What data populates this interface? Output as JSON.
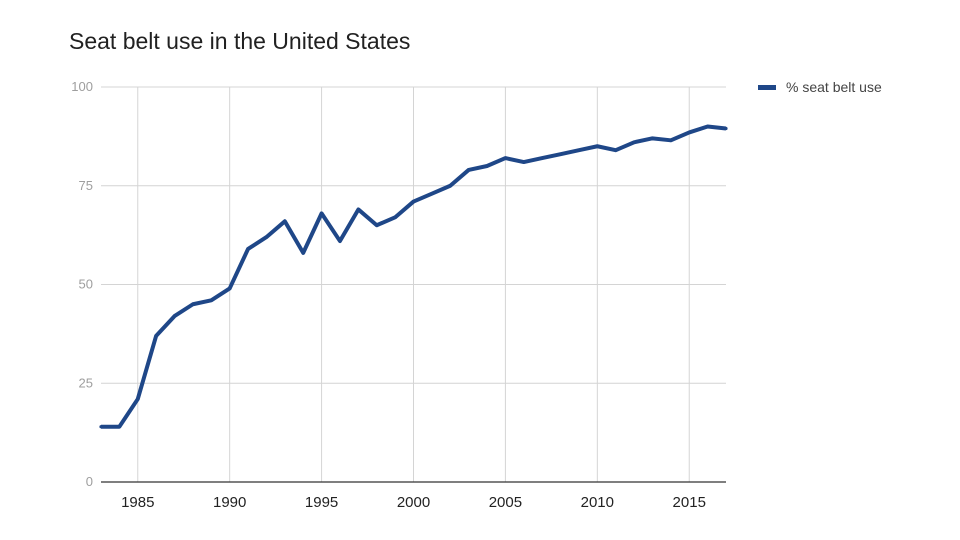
{
  "chart_data": {
    "type": "line",
    "title": "Seat belt use in the United States",
    "xlabel": "",
    "ylabel": "",
    "xlim": [
      1983,
      2017
    ],
    "ylim": [
      0,
      100
    ],
    "x_ticks": [
      "1985",
      "1990",
      "1995",
      "2000",
      "2005",
      "2010",
      "2015"
    ],
    "y_ticks": [
      "0",
      "25",
      "50",
      "75",
      "100"
    ],
    "grid": true,
    "legend_position": "top-right",
    "series": [
      {
        "name": "% seat belt use",
        "color": "#1f4788",
        "x": [
          1983,
          1984,
          1985,
          1986,
          1987,
          1988,
          1989,
          1990,
          1991,
          1992,
          1993,
          1994,
          1995,
          1996,
          1997,
          1998,
          1999,
          2000,
          2001,
          2002,
          2003,
          2004,
          2005,
          2006,
          2007,
          2008,
          2009,
          2010,
          2011,
          2012,
          2013,
          2014,
          2015,
          2016,
          2017
        ],
        "values": [
          14,
          14,
          21,
          37,
          42,
          45,
          46,
          49,
          59,
          62,
          66,
          58,
          68,
          61,
          69,
          65,
          67,
          71,
          73,
          75,
          79,
          80,
          82,
          81,
          82,
          83,
          84,
          85,
          84,
          86,
          87,
          86.5,
          88.5,
          90,
          89.5
        ]
      }
    ]
  }
}
